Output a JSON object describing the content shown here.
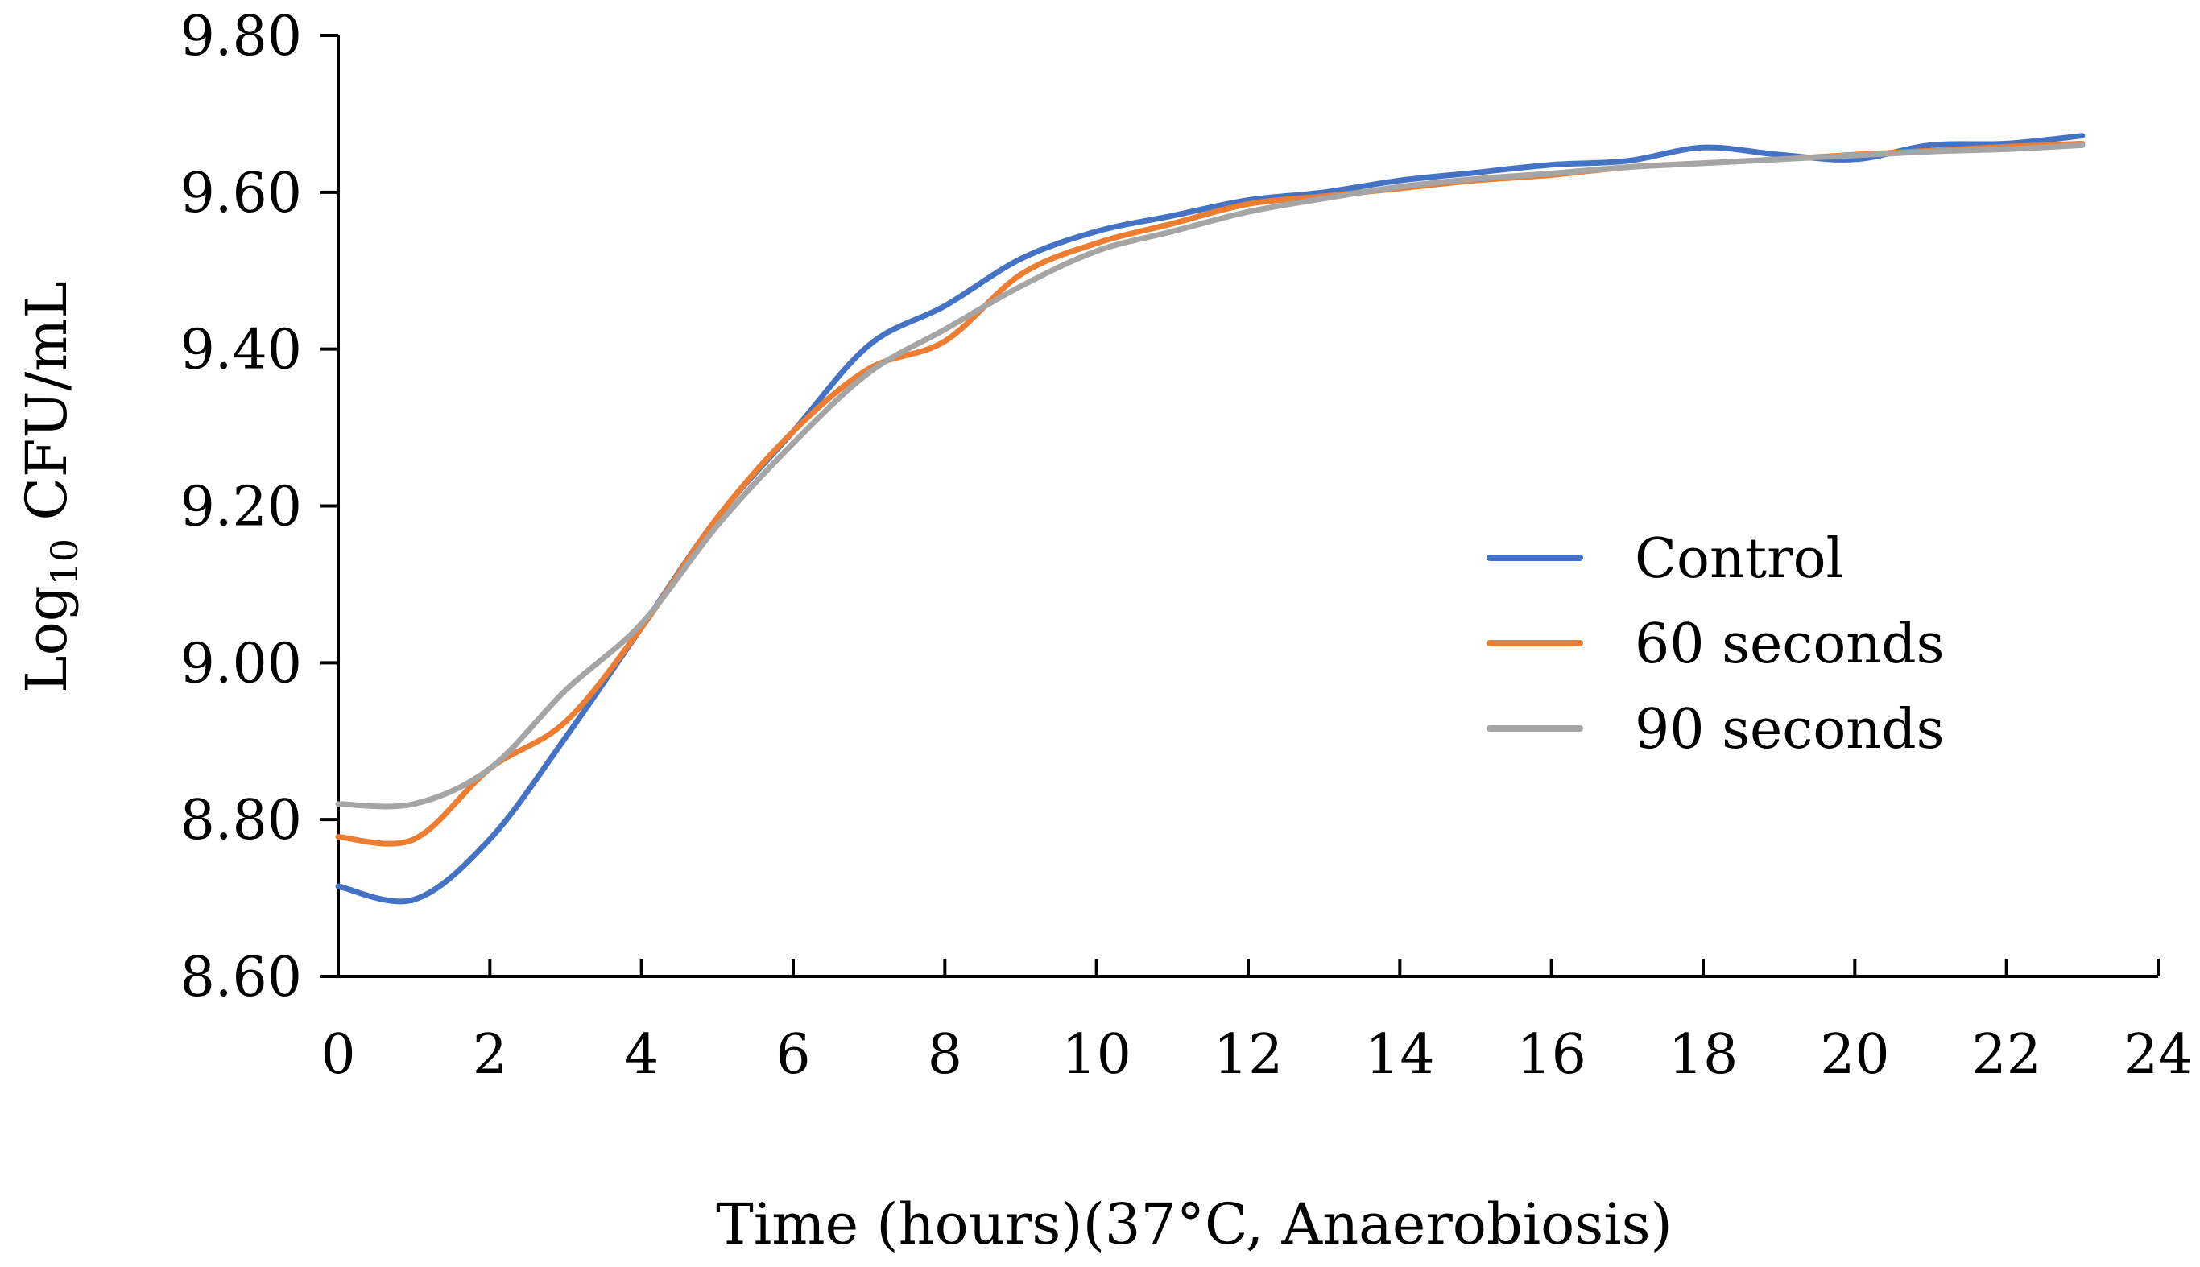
{
  "chart_data": {
    "type": "line",
    "title": "",
    "xlabel": "Time (hours)(37°C, Anaerobiosis)",
    "ylabel_main": "Log",
    "ylabel_sub": "10",
    "ylabel_unit": " CFU/mL",
    "xlim": [
      0,
      24
    ],
    "ylim": [
      8.6,
      9.8
    ],
    "x_ticks": [
      "0",
      "2",
      "4",
      "6",
      "8",
      "10",
      "12",
      "14",
      "16",
      "18",
      "20",
      "22",
      "24"
    ],
    "y_ticks": [
      "8.60",
      "8.80",
      "9.00",
      "9.20",
      "9.40",
      "9.60",
      "9.80"
    ],
    "legend_position": "center-right",
    "grid": false,
    "x": [
      0,
      1,
      2,
      3,
      4,
      5,
      6,
      7,
      8,
      9,
      10,
      11,
      12,
      13,
      14,
      15,
      16,
      17,
      18,
      19,
      20,
      21,
      22,
      23
    ],
    "series": [
      {
        "name": "Control",
        "color": "#4472C4",
        "values": [
          8.715,
          8.698,
          8.775,
          8.905,
          9.045,
          9.185,
          9.295,
          9.405,
          9.455,
          9.515,
          9.55,
          9.57,
          9.59,
          9.6,
          9.615,
          9.625,
          9.635,
          9.64,
          9.657,
          9.648,
          9.642,
          9.66,
          9.662,
          9.672
        ]
      },
      {
        "name": "60 seconds",
        "color": "#ED7D31",
        "values": [
          8.778,
          8.775,
          8.865,
          8.925,
          9.045,
          9.185,
          9.295,
          9.375,
          9.41,
          9.495,
          9.535,
          9.56,
          9.585,
          9.595,
          9.605,
          9.615,
          9.622,
          9.632,
          9.637,
          9.642,
          9.648,
          9.653,
          9.658,
          9.662
        ]
      },
      {
        "name": "90 seconds",
        "color": "#A5A5A5",
        "values": [
          8.82,
          8.82,
          8.865,
          8.965,
          9.05,
          9.175,
          9.28,
          9.37,
          9.425,
          9.48,
          9.525,
          9.55,
          9.575,
          9.592,
          9.607,
          9.617,
          9.624,
          9.632,
          9.637,
          9.642,
          9.647,
          9.652,
          9.655,
          9.66
        ]
      }
    ]
  }
}
